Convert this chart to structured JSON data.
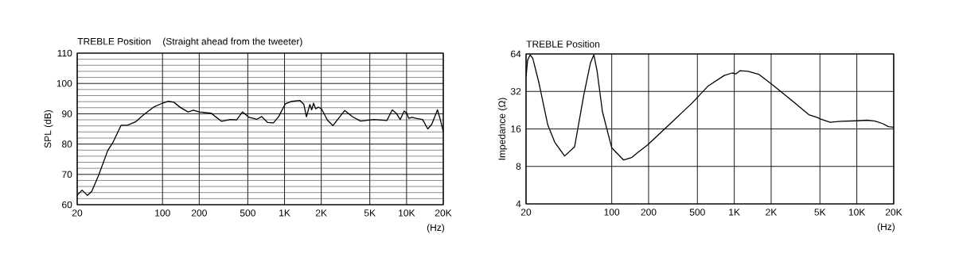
{
  "chart_data": [
    {
      "type": "line",
      "title": "TREBLE Position",
      "subtitle": "(Straight ahead from the tweeter)",
      "xlabel": "(Hz)",
      "ylabel": "SPL (dB)",
      "log": "x",
      "grid": true,
      "xlim": [
        20,
        20000
      ],
      "ylim": [
        60,
        110
      ],
      "xticks": [
        20,
        100,
        200,
        500,
        {
          "value": 1000,
          "label": "1K"
        },
        {
          "value": 2000,
          "label": "2K"
        },
        {
          "value": 5000,
          "label": "5K"
        },
        {
          "value": 10000,
          "label": "10K"
        },
        {
          "value": 20000,
          "label": "20K"
        }
      ],
      "yticks": [
        60,
        70,
        80,
        90,
        100,
        110
      ],
      "x": [
        20,
        21.9,
        24.2,
        26.3,
        29.9,
        35.6,
        39.2,
        45.7,
        51.5,
        60,
        69.3,
        85.4,
        100,
        111.5,
        124,
        140,
        162,
        179,
        200,
        250,
        305,
        362,
        405,
        452,
        512,
        595,
        650,
        728,
        811,
        896,
        1015,
        1150,
        1335,
        1440,
        1512,
        1613,
        1670,
        1730,
        1800,
        1890,
        2010,
        2256,
        2490,
        3115,
        3615,
        4200,
        5380,
        6910,
        7630,
        8230,
        8870,
        9550,
        10040,
        10410,
        11100,
        11960,
        13530,
        14920,
        16070,
        17930,
        18840,
        20000
      ],
      "series": [
        {
          "color": "#000000",
          "values": [
            63.1,
            64.8,
            63.1,
            64.4,
            69.6,
            77.9,
            80.5,
            86.2,
            86.2,
            87.3,
            89.5,
            92.3,
            93.5,
            94.1,
            93.8,
            92.1,
            90.6,
            91.2,
            90.6,
            90.2,
            87.5,
            88.1,
            88.0,
            90.6,
            88.8,
            88.2,
            89.1,
            87.1,
            87.0,
            89.1,
            93.3,
            94.1,
            94.4,
            93.1,
            89.0,
            93.1,
            91.3,
            93.5,
            91.6,
            92.2,
            91.6,
            87.8,
            86.1,
            91.1,
            89.0,
            87.6,
            88.1,
            87.8,
            91.3,
            90.2,
            88.1,
            90.9,
            90.2,
            88.5,
            88.8,
            88.5,
            88.1,
            85.0,
            86.5,
            91.3,
            88.3,
            84.1
          ]
        }
      ]
    },
    {
      "type": "line",
      "title": "TREBLE Position",
      "xlabel": "(Hz)",
      "ylabel": "Impedance (Ω)",
      "log": "xy",
      "grid": true,
      "xlim": [
        20,
        20000
      ],
      "ylim": [
        4,
        64
      ],
      "xticks": [
        20,
        100,
        200,
        500,
        {
          "value": 1000,
          "label": "1K"
        },
        {
          "value": 2000,
          "label": "2K"
        },
        {
          "value": 5000,
          "label": "5K"
        },
        {
          "value": 10000,
          "label": "10K"
        },
        {
          "value": 20000,
          "label": "20K"
        }
      ],
      "yticks": [
        4,
        8,
        16,
        32,
        64
      ],
      "x": [
        20,
        20.6,
        21.6,
        22.7,
        25.4,
        30.1,
        34.3,
        41.3,
        49.8,
        59.2,
        67,
        71.5,
        75.9,
        84,
        100,
        125,
        145,
        160,
        196,
        307,
        456,
        614,
        828,
        961,
        1035,
        1116,
        1295,
        1580,
        2027,
        3020,
        4060,
        4720,
        5080,
        6060,
        7390,
        9970,
        12130,
        14100,
        16380,
        18100,
        20000
      ],
      "series": [
        {
          "color": "#000000",
          "values": [
            42,
            57,
            63,
            59,
            38,
            17.2,
            12.5,
            9.7,
            11.5,
            30,
            54,
            63,
            47,
            22,
            11.3,
            9.0,
            9.4,
            10.2,
            11.9,
            18,
            26,
            35.5,
            43,
            45,
            44.3,
            47,
            46.4,
            44,
            36.5,
            26.5,
            20.8,
            19.8,
            19.2,
            18.1,
            18.4,
            18.6,
            18.8,
            18.5,
            17.6,
            16.7,
            16.5
          ]
        }
      ]
    }
  ]
}
